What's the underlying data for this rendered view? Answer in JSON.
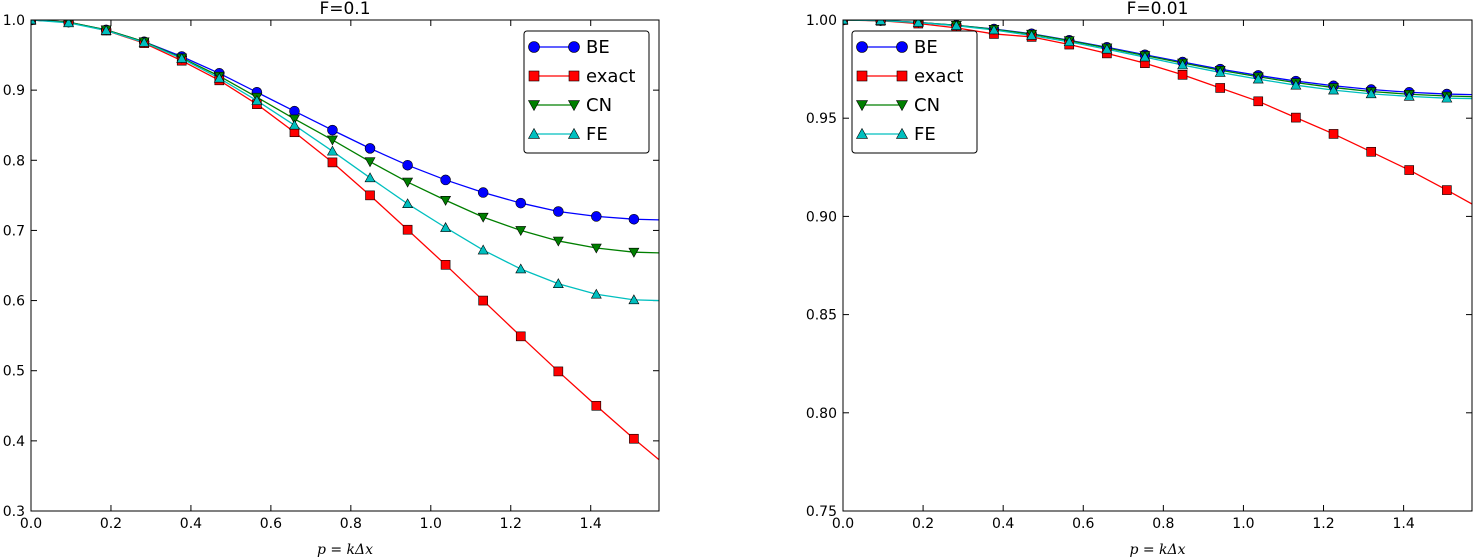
{
  "chart_data": [
    {
      "type": "line",
      "title": "F=0.1",
      "xlabel": "p = kΔx",
      "ylabel": "",
      "xlim": [
        0,
        1.5708
      ],
      "ylim": [
        0.3,
        1.0
      ],
      "xticks": [
        "0.0",
        "0.2",
        "0.4",
        "0.6",
        "0.8",
        "1.0",
        "1.2",
        "1.4"
      ],
      "xtick_values": [
        0,
        0.2,
        0.4,
        0.6,
        0.8,
        1.0,
        1.2,
        1.4
      ],
      "yticks": [
        "0.3",
        "0.4",
        "0.5",
        "0.6",
        "0.7",
        "0.8",
        "0.9",
        "1.0"
      ],
      "ytick_values": [
        0.3,
        0.4,
        0.5,
        0.6,
        0.7,
        0.8,
        0.9,
        1.0
      ],
      "legend_position": "top-right",
      "series": [
        {
          "name": "BE",
          "color": "#0000ff",
          "marker": "circle",
          "x": [
            0,
            0.094,
            0.188,
            0.283,
            0.377,
            0.471,
            0.565,
            0.659,
            0.754,
            0.848,
            0.942,
            1.037,
            1.131,
            1.225,
            1.319,
            1.414,
            1.508,
            1.571
          ],
          "y": [
            1.0,
            0.997,
            0.986,
            0.969,
            0.948,
            0.924,
            0.897,
            0.87,
            0.843,
            0.817,
            0.793,
            0.772,
            0.754,
            0.739,
            0.727,
            0.72,
            0.716,
            0.715
          ]
        },
        {
          "name": "exact",
          "color": "#ff0000",
          "marker": "square",
          "x": [
            0,
            0.094,
            0.188,
            0.283,
            0.377,
            0.471,
            0.565,
            0.659,
            0.754,
            0.848,
            0.942,
            1.037,
            1.131,
            1.225,
            1.319,
            1.414,
            1.508,
            1.571
          ],
          "y": [
            1.0,
            0.997,
            0.985,
            0.967,
            0.942,
            0.914,
            0.88,
            0.84,
            0.797,
            0.75,
            0.701,
            0.651,
            0.6,
            0.549,
            0.499,
            0.45,
            0.403,
            0.373
          ]
        },
        {
          "name": "CN",
          "color": "#007f00",
          "marker": "triangle-down",
          "x": [
            0,
            0.094,
            0.188,
            0.283,
            0.377,
            0.471,
            0.565,
            0.659,
            0.754,
            0.848,
            0.942,
            1.037,
            1.131,
            1.225,
            1.319,
            1.414,
            1.508,
            1.571
          ],
          "y": [
            1.0,
            0.997,
            0.986,
            0.969,
            0.946,
            0.92,
            0.89,
            0.859,
            0.829,
            0.798,
            0.769,
            0.743,
            0.719,
            0.7,
            0.685,
            0.675,
            0.669,
            0.668
          ]
        },
        {
          "name": "FE",
          "color": "#00bfbf",
          "marker": "triangle-up",
          "x": [
            0,
            0.094,
            0.188,
            0.283,
            0.377,
            0.471,
            0.565,
            0.659,
            0.754,
            0.848,
            0.942,
            1.037,
            1.131,
            1.225,
            1.319,
            1.414,
            1.508,
            1.571
          ],
          "y": [
            1.0,
            0.996,
            0.985,
            0.968,
            0.945,
            0.917,
            0.885,
            0.85,
            0.813,
            0.775,
            0.738,
            0.704,
            0.672,
            0.645,
            0.624,
            0.609,
            0.601,
            0.6
          ]
        }
      ]
    },
    {
      "type": "line",
      "title": "F=0.01",
      "xlabel": "p = kΔx",
      "ylabel": "",
      "xlim": [
        0,
        1.5708
      ],
      "ylim": [
        0.75,
        1.0
      ],
      "xticks": [
        "0.0",
        "0.2",
        "0.4",
        "0.6",
        "0.8",
        "1.0",
        "1.2",
        "1.4"
      ],
      "xtick_values": [
        0,
        0.2,
        0.4,
        0.6,
        0.8,
        1.0,
        1.2,
        1.4
      ],
      "yticks": [
        "0.75",
        "0.80",
        "0.85",
        "0.90",
        "0.95",
        "1.00"
      ],
      "ytick_values": [
        0.75,
        0.8,
        0.85,
        0.9,
        0.95,
        1.0
      ],
      "legend_position": "top-left",
      "series": [
        {
          "name": "BE",
          "color": "#0000ff",
          "marker": "circle",
          "x": [
            0,
            0.094,
            0.188,
            0.283,
            0.377,
            0.471,
            0.565,
            0.659,
            0.754,
            0.848,
            0.942,
            1.037,
            1.131,
            1.225,
            1.319,
            1.414,
            1.508,
            1.571
          ],
          "y": [
            1.0,
            0.9997,
            0.9988,
            0.9973,
            0.9954,
            0.993,
            0.9897,
            0.9861,
            0.9823,
            0.9786,
            0.975,
            0.9718,
            0.9689,
            0.9665,
            0.9646,
            0.9632,
            0.9623,
            0.962
          ]
        },
        {
          "name": "exact",
          "color": "#ff0000",
          "marker": "square",
          "x": [
            0,
            0.094,
            0.188,
            0.283,
            0.377,
            0.471,
            0.565,
            0.659,
            0.754,
            0.848,
            0.942,
            1.037,
            1.131,
            1.225,
            1.319,
            1.414,
            1.508,
            1.571
          ],
          "y": [
            1.0,
            0.9996,
            0.9982,
            0.996,
            0.9929,
            0.9914,
            0.9875,
            0.983,
            0.978,
            0.9721,
            0.9654,
            0.9586,
            0.9503,
            0.942,
            0.9329,
            0.9236,
            0.9134,
            0.9063
          ]
        },
        {
          "name": "CN",
          "color": "#007f00",
          "marker": "triangle-down",
          "x": [
            0,
            0.094,
            0.188,
            0.283,
            0.377,
            0.471,
            0.565,
            0.659,
            0.754,
            0.848,
            0.942,
            1.037,
            1.131,
            1.225,
            1.319,
            1.414,
            1.508,
            1.571
          ],
          "y": [
            1.0,
            0.9997,
            0.9988,
            0.9973,
            0.9953,
            0.9928,
            0.9895,
            0.9858,
            0.9819,
            0.9781,
            0.9744,
            0.9711,
            0.9681,
            0.9656,
            0.9636,
            0.9622,
            0.9613,
            0.961
          ]
        },
        {
          "name": "FE",
          "color": "#00bfbf",
          "marker": "triangle-up",
          "x": [
            0,
            0.094,
            0.188,
            0.283,
            0.377,
            0.471,
            0.565,
            0.659,
            0.754,
            0.848,
            0.942,
            1.037,
            1.131,
            1.225,
            1.319,
            1.414,
            1.508,
            1.571
          ],
          "y": [
            1.0,
            0.9997,
            0.9987,
            0.9971,
            0.9949,
            0.9921,
            0.9889,
            0.9851,
            0.9811,
            0.9771,
            0.9733,
            0.9699,
            0.9668,
            0.9643,
            0.9624,
            0.9611,
            0.9602,
            0.96
          ]
        }
      ]
    }
  ]
}
